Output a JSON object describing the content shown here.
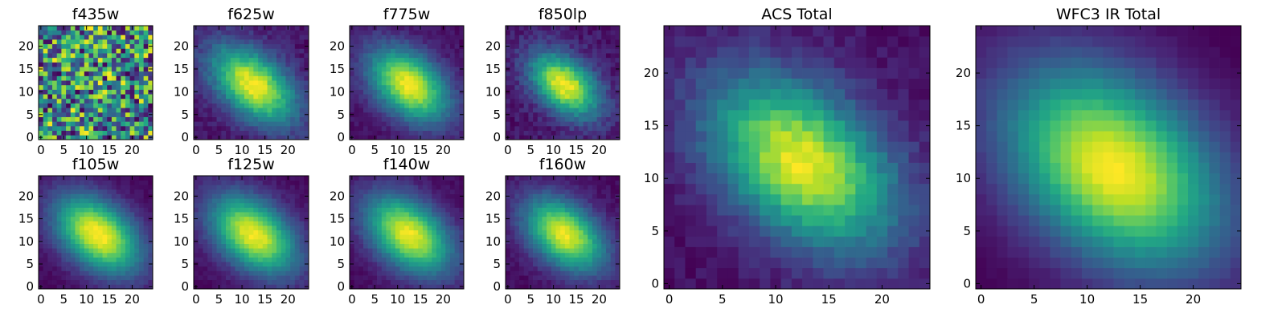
{
  "chart_data": {
    "type": "heatmap",
    "colormap": "viridis",
    "grid": false,
    "pixels_per_side": 25,
    "panels": [
      {
        "id": "f435w",
        "title": "f435w",
        "profile": "noise",
        "center": [
          12,
          12
        ],
        "sigma": [
          6.0,
          3.5
        ],
        "angle_deg": -40,
        "noise": 0.9,
        "background": 0.45,
        "xlim": [
          -0.5,
          24.5
        ],
        "ylim": [
          -0.5,
          24.5
        ],
        "xticks": [
          0,
          5,
          10,
          15,
          20
        ],
        "yticks": [
          0,
          5,
          10,
          15,
          20
        ]
      },
      {
        "id": "f625w",
        "title": "f625w",
        "profile": "gauss",
        "center": [
          12.5,
          11.5
        ],
        "sigma": [
          7.5,
          4.5
        ],
        "angle_deg": -40,
        "noise": 0.12,
        "background": 0.05,
        "xlim": [
          -0.5,
          24.5
        ],
        "ylim": [
          -0.5,
          24.5
        ],
        "xticks": [
          0,
          5,
          10,
          15,
          20
        ],
        "yticks": [
          0,
          5,
          10,
          15,
          20
        ]
      },
      {
        "id": "f775w",
        "title": "f775w",
        "profile": "gauss",
        "center": [
          12.5,
          11.5
        ],
        "sigma": [
          7.0,
          4.5
        ],
        "angle_deg": -40,
        "noise": 0.09,
        "background": 0.05,
        "xlim": [
          -0.5,
          24.5
        ],
        "ylim": [
          -0.5,
          24.5
        ],
        "xticks": [
          0,
          5,
          10,
          15,
          20
        ],
        "yticks": [
          0,
          5,
          10,
          15,
          20
        ]
      },
      {
        "id": "f850lp",
        "title": "f850lp",
        "profile": "gauss",
        "center": [
          12.5,
          11.5
        ],
        "sigma": [
          6.0,
          3.8
        ],
        "angle_deg": -40,
        "noise": 0.14,
        "background": 0.05,
        "xlim": [
          -0.5,
          24.5
        ],
        "ylim": [
          -0.5,
          24.5
        ],
        "xticks": [
          0,
          5,
          10,
          15,
          20
        ],
        "yticks": [
          0,
          5,
          10,
          15,
          20
        ]
      },
      {
        "id": "f105w",
        "title": "f105w",
        "profile": "gauss",
        "center": [
          12.5,
          11.5
        ],
        "sigma": [
          7.5,
          4.8
        ],
        "angle_deg": -40,
        "noise": 0.06,
        "background": 0.03,
        "xlim": [
          -0.5,
          24.5
        ],
        "ylim": [
          -0.5,
          24.5
        ],
        "xticks": [
          0,
          5,
          10,
          15,
          20
        ],
        "yticks": [
          0,
          5,
          10,
          15,
          20
        ]
      },
      {
        "id": "f125w",
        "title": "f125w",
        "profile": "gauss",
        "center": [
          12.5,
          11.5
        ],
        "sigma": [
          7.5,
          4.8
        ],
        "angle_deg": -40,
        "noise": 0.07,
        "background": 0.03,
        "xlim": [
          -0.5,
          24.5
        ],
        "ylim": [
          -0.5,
          24.5
        ],
        "xticks": [
          0,
          5,
          10,
          15,
          20
        ],
        "yticks": [
          0,
          5,
          10,
          15,
          20
        ]
      },
      {
        "id": "f140w",
        "title": "f140w",
        "profile": "gauss",
        "center": [
          12.5,
          11.5
        ],
        "sigma": [
          7.5,
          4.8
        ],
        "angle_deg": -40,
        "noise": 0.07,
        "background": 0.03,
        "xlim": [
          -0.5,
          24.5
        ],
        "ylim": [
          -0.5,
          24.5
        ],
        "xticks": [
          0,
          5,
          10,
          15,
          20
        ],
        "yticks": [
          0,
          5,
          10,
          15,
          20
        ]
      },
      {
        "id": "f160w",
        "title": "f160w",
        "profile": "gauss",
        "center": [
          12.5,
          11.5
        ],
        "sigma": [
          7.0,
          4.5
        ],
        "angle_deg": -40,
        "noise": 0.08,
        "background": 0.03,
        "xlim": [
          -0.5,
          24.5
        ],
        "ylim": [
          -0.5,
          24.5
        ],
        "xticks": [
          0,
          5,
          10,
          15,
          20
        ],
        "yticks": [
          0,
          5,
          10,
          15,
          20
        ]
      },
      {
        "id": "acs-total",
        "title": "ACS Total",
        "profile": "gauss",
        "center": [
          12.5,
          11.5
        ],
        "sigma": [
          7.0,
          4.5
        ],
        "angle_deg": -40,
        "noise": 0.1,
        "background": 0.05,
        "xlim": [
          -0.5,
          24.5
        ],
        "ylim": [
          -0.5,
          24.5
        ],
        "xticks": [
          0,
          5,
          10,
          15,
          20
        ],
        "yticks": [
          0,
          5,
          10,
          15,
          20
        ]
      },
      {
        "id": "wfc3-ir-total",
        "title": "WFC3 IR Total",
        "profile": "gauss",
        "center": [
          12.5,
          11.0
        ],
        "sigma": [
          8.0,
          5.5
        ],
        "angle_deg": -40,
        "noise": 0.03,
        "background": 0.02,
        "xlim": [
          -0.5,
          24.5
        ],
        "ylim": [
          -0.5,
          24.5
        ],
        "xticks": [
          0,
          5,
          10,
          15,
          20
        ],
        "yticks": [
          0,
          5,
          10,
          15,
          20
        ]
      }
    ]
  }
}
